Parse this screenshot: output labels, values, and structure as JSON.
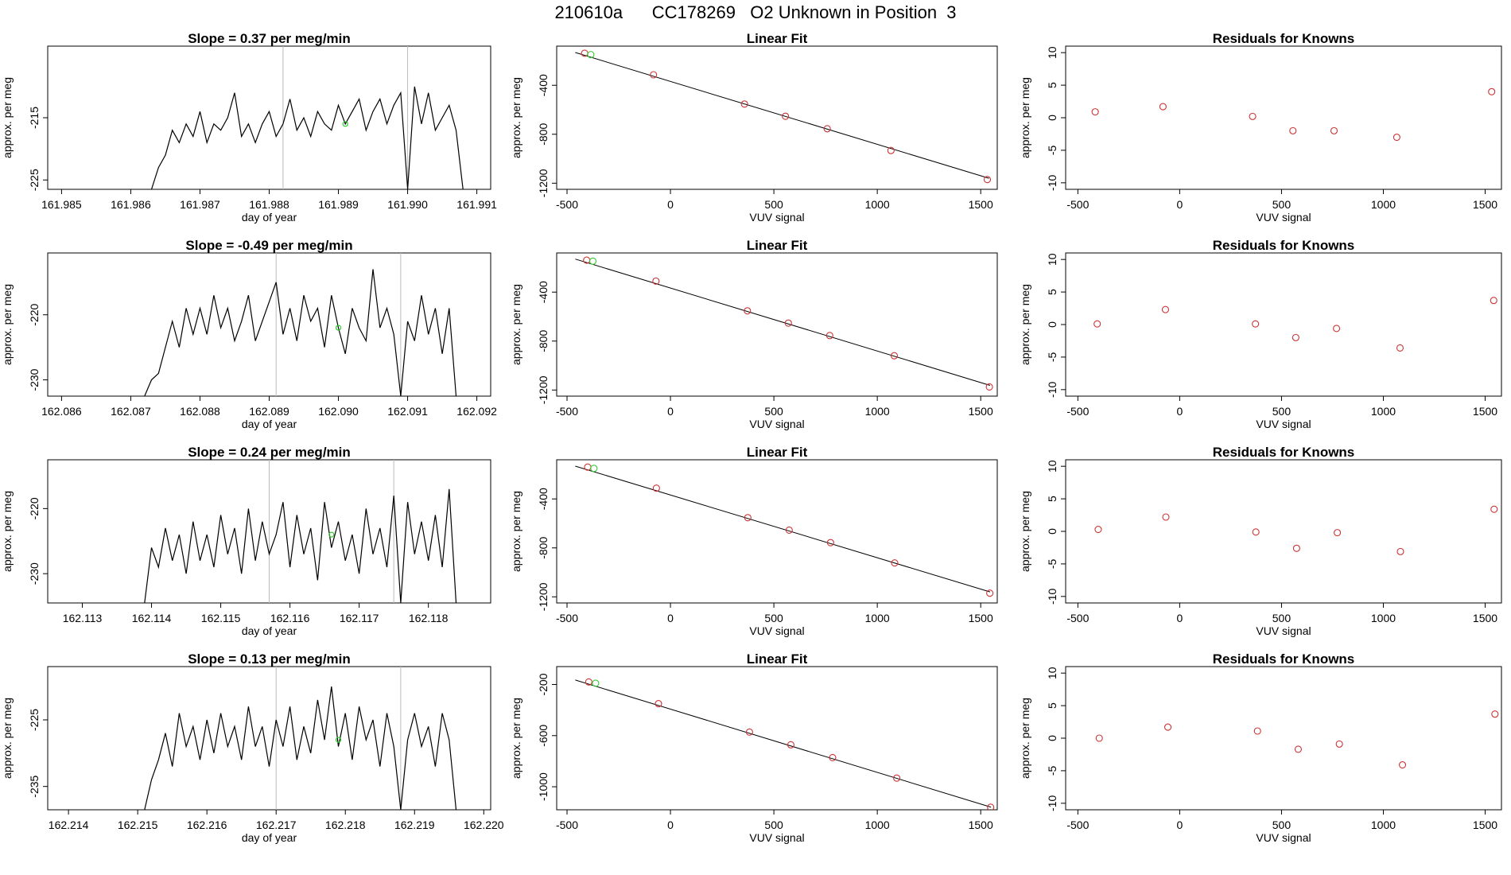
{
  "page_title": "210610a      CC178269   O2 Unknown in Position  3",
  "colors": {
    "line": "#000000",
    "known": "#cc3333",
    "unknown": "#33cc33",
    "vline": "#bbbbbb",
    "axis": "#000000"
  },
  "chart_data": [
    {
      "type": "line",
      "row": 0,
      "col": 0,
      "title": "Slope =  0.37  per meg/min",
      "xlabel": "day of year",
      "ylabel": "approx. per meg",
      "xlim": [
        161.9848,
        161.9912
      ],
      "ylim": [
        -226.5,
        -203.5
      ],
      "xticks": [
        161.985,
        161.986,
        161.987,
        161.988,
        161.989,
        161.99,
        161.991
      ],
      "xtick_labels": [
        "161.985",
        "161.986",
        "161.987",
        "161.988",
        "161.989",
        "161.990",
        "161.991"
      ],
      "yticks": [
        -225,
        -215
      ],
      "ytick_labels": [
        "-225",
        "-215"
      ],
      "vlines": [
        161.9882,
        161.99
      ],
      "unknown_point": {
        "x": 161.9891,
        "y": -216
      },
      "series": [
        {
          "name": "signal",
          "x": [
            161.9863,
            161.9864,
            161.9865,
            161.9866,
            161.9867,
            161.9868,
            161.9869,
            161.987,
            161.9871,
            161.9872,
            161.9873,
            161.9874,
            161.9875,
            161.9876,
            161.9877,
            161.9878,
            161.9879,
            161.988,
            161.9881,
            161.9882,
            161.9883,
            161.9884,
            161.9885,
            161.9886,
            161.9887,
            161.9888,
            161.9889,
            161.989,
            161.9891,
            161.9892,
            161.9893,
            161.9894,
            161.9895,
            161.9896,
            161.9897,
            161.9898,
            161.9899,
            161.99,
            161.9901,
            161.9902,
            161.9903,
            161.9904,
            161.9905,
            161.9906,
            161.9907,
            161.9908
          ],
          "y": [
            -226.5,
            -223,
            -221,
            -217,
            -219,
            -216,
            -218,
            -214,
            -219,
            -216,
            -217,
            -215,
            -211,
            -218,
            -216,
            -219,
            -216,
            -214,
            -218,
            -216,
            -212,
            -217,
            -215,
            -218,
            -214,
            -216,
            -217,
            -213,
            -216,
            -214,
            -212,
            -217,
            -214,
            -212,
            -216,
            -213,
            -211,
            -226.5,
            -210,
            -216,
            -211,
            -217,
            -215,
            -213,
            -217,
            -226.5
          ]
        }
      ]
    },
    {
      "type": "scatter",
      "row": 0,
      "col": 1,
      "title": "Linear Fit",
      "xlabel": "VUV signal",
      "ylabel": "approx. per meg",
      "xlim": [
        -550,
        1580
      ],
      "ylim": [
        -1250,
        -80
      ],
      "xticks": [
        -500,
        0,
        500,
        1000,
        1500
      ],
      "xtick_labels": [
        "-500",
        "0",
        "500",
        "1000",
        "1500"
      ],
      "yticks": [
        -400,
        -800,
        -1200
      ],
      "ytick_labels": [
        "-400",
        "-800",
        "-1200"
      ],
      "fit_line": {
        "x": [
          -460,
          1540
        ],
        "y": [
          -132,
          -1160
        ]
      },
      "knowns": {
        "x": [
          -415,
          -82,
          358,
          556,
          758,
          1066,
          1532
        ],
        "y": [
          -138,
          -314,
          -553,
          -653,
          -755,
          -933,
          -1170
        ]
      },
      "unknowns": {
        "x": [
          -385
        ],
        "y": [
          -149
        ]
      }
    },
    {
      "type": "scatter",
      "row": 0,
      "col": 2,
      "title": "Residuals for Knowns",
      "xlabel": "VUV signal",
      "ylabel": "approx. per meg",
      "xlim": [
        -560,
        1580
      ],
      "ylim": [
        -11,
        11
      ],
      "xticks": [
        -500,
        0,
        500,
        1000,
        1500
      ],
      "xtick_labels": [
        "-500",
        "0",
        "500",
        "1000",
        "1500"
      ],
      "yticks": [
        10,
        5,
        0,
        -5,
        -10
      ],
      "ytick_labels": [
        "10",
        "5",
        "0",
        "-5",
        "-10"
      ],
      "knowns": {
        "x": [
          -415,
          -82,
          358,
          556,
          758,
          1066,
          1532
        ],
        "y": [
          0.9,
          1.7,
          0.2,
          -2.0,
          -2.0,
          -3.0,
          4.0
        ]
      }
    },
    {
      "type": "line",
      "row": 1,
      "col": 0,
      "title": "Slope =  -0.49  per meg/min",
      "xlabel": "day of year",
      "ylabel": "approx. per meg",
      "xlim": [
        162.0858,
        162.0922
      ],
      "ylim": [
        -232.5,
        -210.5
      ],
      "xticks": [
        162.086,
        162.087,
        162.088,
        162.089,
        162.09,
        162.091,
        162.092
      ],
      "xtick_labels": [
        "162.086",
        "162.087",
        "162.088",
        "162.089",
        "162.090",
        "162.091",
        "162.092"
      ],
      "yticks": [
        -220,
        -230
      ],
      "ytick_labels": [
        "-220",
        "-230"
      ],
      "vlines": [
        162.0891,
        162.0909
      ],
      "unknown_point": {
        "x": 162.09,
        "y": -222
      },
      "series": [
        {
          "name": "signal",
          "x": [
            162.0872,
            162.0873,
            162.0874,
            162.0875,
            162.0876,
            162.0877,
            162.0878,
            162.0879,
            162.088,
            162.0881,
            162.0882,
            162.0883,
            162.0884,
            162.0885,
            162.0886,
            162.0887,
            162.0888,
            162.0889,
            162.089,
            162.0891,
            162.0892,
            162.0893,
            162.0894,
            162.0895,
            162.0896,
            162.0897,
            162.0898,
            162.0899,
            162.09,
            162.0901,
            162.0902,
            162.0903,
            162.0904,
            162.0905,
            162.0906,
            162.0907,
            162.0908,
            162.0909,
            162.091,
            162.0911,
            162.0912,
            162.0913,
            162.0914,
            162.0915,
            162.0916,
            162.0917
          ],
          "y": [
            -232.5,
            -230,
            -229,
            -225,
            -221,
            -225,
            -219,
            -223,
            -219,
            -223,
            -217,
            -222,
            -219,
            -224,
            -221,
            -217,
            -224,
            -221,
            -218,
            -215,
            -223,
            -219,
            -224,
            -217,
            -221,
            -219,
            -225,
            -217,
            -222,
            -226,
            -219,
            -222,
            -224,
            -213,
            -222,
            -219,
            -223,
            -232.5,
            -221,
            -224,
            -217,
            -223,
            -219,
            -226,
            -219,
            -232.5
          ]
        }
      ]
    },
    {
      "type": "scatter",
      "row": 1,
      "col": 1,
      "title": "Linear Fit",
      "xlabel": "VUV signal",
      "ylabel": "approx. per meg",
      "xlim": [
        -550,
        1580
      ],
      "ylim": [
        -1250,
        -80
      ],
      "xticks": [
        -500,
        0,
        500,
        1000,
        1500
      ],
      "xtick_labels": [
        "-500",
        "0",
        "500",
        "1000",
        "1500"
      ],
      "yticks": [
        -400,
        -800,
        -1200
      ],
      "ytick_labels": [
        "-400",
        "-800",
        "-1200"
      ],
      "fit_line": {
        "x": [
          -460,
          1545
        ],
        "y": [
          -130,
          -1162
        ]
      },
      "knowns": {
        "x": [
          -405,
          -70,
          372,
          570,
          770,
          1082,
          1542
        ],
        "y": [
          -139,
          -310,
          -553,
          -653,
          -755,
          -920,
          -1175
        ]
      },
      "unknowns": {
        "x": [
          -375
        ],
        "y": [
          -147
        ]
      }
    },
    {
      "type": "scatter",
      "row": 1,
      "col": 2,
      "title": "Residuals for Knowns",
      "xlabel": "VUV signal",
      "ylabel": "approx. per meg",
      "xlim": [
        -560,
        1580
      ],
      "ylim": [
        -11,
        11
      ],
      "xticks": [
        -500,
        0,
        500,
        1000,
        1500
      ],
      "xtick_labels": [
        "-500",
        "0",
        "500",
        "1000",
        "1500"
      ],
      "yticks": [
        10,
        5,
        0,
        -5,
        -10
      ],
      "ytick_labels": [
        "10",
        "5",
        "0",
        "-5",
        "-10"
      ],
      "knowns": {
        "x": [
          -405,
          -70,
          372,
          570,
          770,
          1082,
          1542
        ],
        "y": [
          0.1,
          2.3,
          0.1,
          -2.0,
          -0.6,
          -3.6,
          3.7
        ]
      }
    },
    {
      "type": "line",
      "row": 2,
      "col": 0,
      "title": "Slope =  0.24  per meg/min",
      "xlabel": "day of year",
      "ylabel": "approx. per meg",
      "xlim": [
        162.1125,
        162.1189
      ],
      "ylim": [
        -234.5,
        -212.5
      ],
      "xticks": [
        162.113,
        162.114,
        162.115,
        162.116,
        162.117,
        162.118
      ],
      "xtick_labels": [
        "162.113",
        "162.114",
        "162.115",
        "162.116",
        "162.117",
        "162.118"
      ],
      "yticks": [
        -220,
        -230
      ],
      "ytick_labels": [
        "-220",
        "-230"
      ],
      "vlines": [
        162.1157,
        162.1175
      ],
      "unknown_point": {
        "x": 162.1166,
        "y": -224
      },
      "series": [
        {
          "name": "signal",
          "x": [
            162.1139,
            162.114,
            162.1141,
            162.1142,
            162.1143,
            162.1144,
            162.1145,
            162.1146,
            162.1147,
            162.1148,
            162.1149,
            162.115,
            162.1151,
            162.1152,
            162.1153,
            162.1154,
            162.1155,
            162.1156,
            162.1157,
            162.1158,
            162.1159,
            162.116,
            162.1161,
            162.1162,
            162.1163,
            162.1164,
            162.1165,
            162.1166,
            162.1167,
            162.1168,
            162.1169,
            162.117,
            162.1171,
            162.1172,
            162.1173,
            162.1174,
            162.1175,
            162.1176,
            162.1177,
            162.1178,
            162.1179,
            162.118,
            162.1181,
            162.1182,
            162.1183,
            162.1184
          ],
          "y": [
            -234.5,
            -226,
            -229,
            -223,
            -228,
            -224,
            -230,
            -222,
            -228,
            -224,
            -229,
            -221,
            -227,
            -223,
            -230,
            -220,
            -228,
            -222,
            -227,
            -224,
            -219,
            -229,
            -221,
            -227,
            -223,
            -231,
            -219,
            -226,
            -222,
            -228,
            -224,
            -230,
            -220,
            -227,
            -223,
            -229,
            -218,
            -234.5,
            -219,
            -227,
            -222,
            -228,
            -221,
            -229,
            -217,
            -234.5
          ]
        }
      ]
    },
    {
      "type": "scatter",
      "row": 2,
      "col": 1,
      "title": "Linear Fit",
      "xlabel": "VUV signal",
      "ylabel": "approx. per meg",
      "xlim": [
        -550,
        1580
      ],
      "ylim": [
        -1250,
        -80
      ],
      "xticks": [
        -500,
        0,
        500,
        1000,
        1500
      ],
      "xtick_labels": [
        "-500",
        "0",
        "500",
        "1000",
        "1500"
      ],
      "yticks": [
        -400,
        -800,
        -1200
      ],
      "ytick_labels": [
        "-400",
        "-800",
        "-1200"
      ],
      "fit_line": {
        "x": [
          -460,
          1545
        ],
        "y": [
          -132,
          -1160
        ]
      },
      "knowns": {
        "x": [
          -400,
          -68,
          374,
          574,
          774,
          1084,
          1544
        ],
        "y": [
          -140,
          -312,
          -553,
          -655,
          -757,
          -923,
          -1170
        ]
      },
      "unknowns": {
        "x": [
          -370
        ],
        "y": [
          -150
        ]
      }
    },
    {
      "type": "scatter",
      "row": 2,
      "col": 2,
      "title": "Residuals for Knowns",
      "xlabel": "VUV signal",
      "ylabel": "approx. per meg",
      "xlim": [
        -560,
        1580
      ],
      "ylim": [
        -11,
        11
      ],
      "xticks": [
        -500,
        0,
        500,
        1000,
        1500
      ],
      "xtick_labels": [
        "-500",
        "0",
        "500",
        "1000",
        "1500"
      ],
      "yticks": [
        10,
        5,
        0,
        -5,
        -10
      ],
      "ytick_labels": [
        "10",
        "5",
        "0",
        "-5",
        "-10"
      ],
      "knowns": {
        "x": [
          -400,
          -68,
          374,
          574,
          774,
          1084,
          1544
        ],
        "y": [
          0.3,
          2.2,
          -0.1,
          -2.6,
          -0.2,
          -3.1,
          3.4
        ]
      }
    },
    {
      "type": "line",
      "row": 3,
      "col": 0,
      "title": "Slope =  0.13  per meg/min",
      "xlabel": "day of year",
      "ylabel": "approx. per meg",
      "xlim": [
        162.2137,
        162.2201
      ],
      "ylim": [
        -238.5,
        -217
      ],
      "xticks": [
        162.214,
        162.215,
        162.216,
        162.217,
        162.218,
        162.219,
        162.22
      ],
      "xtick_labels": [
        "162.214",
        "162.215",
        "162.216",
        "162.217",
        "162.218",
        "162.219",
        "162.220"
      ],
      "yticks": [
        -225,
        -235
      ],
      "ytick_labels": [
        "-225",
        "-235"
      ],
      "vlines": [
        162.217,
        162.2188
      ],
      "unknown_point": {
        "x": 162.2179,
        "y": -228
      },
      "series": [
        {
          "name": "signal",
          "x": [
            162.2151,
            162.2152,
            162.2153,
            162.2154,
            162.2155,
            162.2156,
            162.2157,
            162.2158,
            162.2159,
            162.216,
            162.2161,
            162.2162,
            162.2163,
            162.2164,
            162.2165,
            162.2166,
            162.2167,
            162.2168,
            162.2169,
            162.217,
            162.2171,
            162.2172,
            162.2173,
            162.2174,
            162.2175,
            162.2176,
            162.2177,
            162.2178,
            162.2179,
            162.218,
            162.2181,
            162.2182,
            162.2183,
            162.2184,
            162.2185,
            162.2186,
            162.2187,
            162.2188,
            162.2189,
            162.219,
            162.2191,
            162.2192,
            162.2193,
            162.2194,
            162.2195,
            162.2196
          ],
          "y": [
            -238.5,
            -234,
            -231,
            -227,
            -232,
            -224,
            -229,
            -226,
            -231,
            -225,
            -230,
            -224,
            -229,
            -226,
            -231,
            -223,
            -229,
            -226,
            -232,
            -225,
            -229,
            -223,
            -231,
            -226,
            -230,
            -222,
            -228,
            -220,
            -229,
            -224,
            -231,
            -223,
            -228,
            -225,
            -232,
            -224,
            -229,
            -238.5,
            -228,
            -224,
            -229,
            -226,
            -232,
            -224,
            -228,
            -238.5
          ]
        }
      ]
    },
    {
      "type": "scatter",
      "row": 3,
      "col": 1,
      "title": "Linear Fit",
      "xlabel": "VUV signal",
      "ylabel": "approx. per meg",
      "xlim": [
        -550,
        1580
      ],
      "ylim": [
        -1180,
        -60
      ],
      "xticks": [
        -500,
        0,
        500,
        1000,
        1500
      ],
      "xtick_labels": [
        "-500",
        "0",
        "500",
        "1000",
        "1500"
      ],
      "yticks": [
        -200,
        -600,
        -1000
      ],
      "ytick_labels": [
        "-200",
        "-600",
        "-1000"
      ],
      "fit_line": {
        "x": [
          -460,
          1550
        ],
        "y": [
          -165,
          -1160
        ]
      },
      "knowns": {
        "x": [
          -395,
          -58,
          382,
          582,
          784,
          1094,
          1548
        ],
        "y": [
          -180,
          -350,
          -572,
          -672,
          -772,
          -932,
          -1160
        ]
      },
      "unknowns": {
        "x": [
          -362
        ],
        "y": [
          -190
        ]
      }
    },
    {
      "type": "scatter",
      "row": 3,
      "col": 2,
      "title": "Residuals for Knowns",
      "xlabel": "VUV signal",
      "ylabel": "approx. per meg",
      "xlim": [
        -560,
        1580
      ],
      "ylim": [
        -11,
        11
      ],
      "xticks": [
        -500,
        0,
        500,
        1000,
        1500
      ],
      "xtick_labels": [
        "-500",
        "0",
        "500",
        "1000",
        "1500"
      ],
      "yticks": [
        10,
        5,
        0,
        -5,
        -10
      ],
      "ytick_labels": [
        "10",
        "5",
        "0",
        "-5",
        "-10"
      ],
      "knowns": {
        "x": [
          -395,
          -58,
          382,
          582,
          784,
          1094,
          1548
        ],
        "y": [
          0.0,
          1.7,
          1.1,
          -1.7,
          -0.9,
          -4.1,
          3.7
        ]
      }
    }
  ]
}
